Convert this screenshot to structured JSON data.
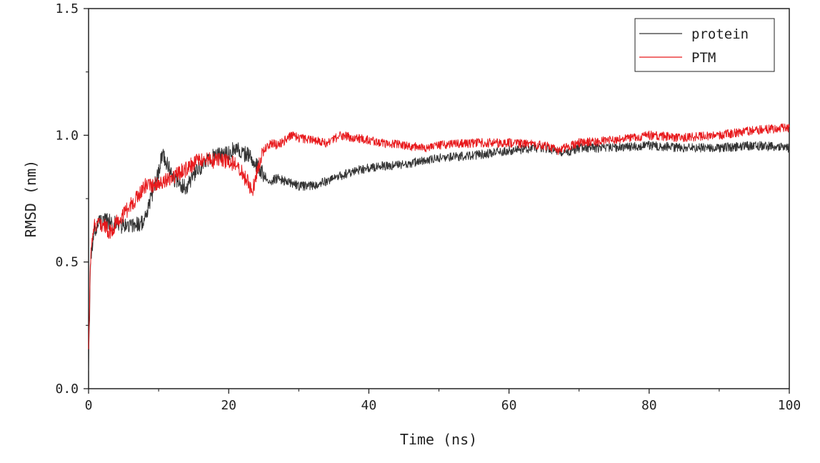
{
  "chart_data": {
    "type": "line",
    "title": "",
    "xlabel": "Time (ns)",
    "ylabel": "RMSD (nm)",
    "xlim": [
      0,
      100
    ],
    "ylim": [
      0,
      1.5
    ],
    "x_ticks": [
      0,
      20,
      40,
      60,
      80,
      100
    ],
    "x_tick_labels": [
      "0",
      "20",
      "40",
      "60",
      "80",
      "100"
    ],
    "y_ticks": [
      0,
      0.5,
      1.0,
      1.5
    ],
    "y_tick_labels": [
      "0.0",
      "0.5",
      "1.0",
      "1.5"
    ],
    "grid": false,
    "legend_position": "top-right",
    "series": [
      {
        "name": "protein",
        "color": "#333333",
        "noise": 0.018,
        "points": [
          [
            0,
            0.1
          ],
          [
            0.3,
            0.5
          ],
          [
            0.8,
            0.62
          ],
          [
            1.5,
            0.66
          ],
          [
            3,
            0.66
          ],
          [
            5,
            0.64
          ],
          [
            7,
            0.65
          ],
          [
            8,
            0.66
          ],
          [
            9,
            0.76
          ],
          [
            10,
            0.86
          ],
          [
            10.5,
            0.93
          ],
          [
            11,
            0.9
          ],
          [
            12,
            0.84
          ],
          [
            13,
            0.8
          ],
          [
            14,
            0.8
          ],
          [
            15,
            0.84
          ],
          [
            16,
            0.87
          ],
          [
            17,
            0.9
          ],
          [
            18,
            0.92
          ],
          [
            19,
            0.92
          ],
          [
            20,
            0.93
          ],
          [
            21,
            0.95
          ],
          [
            22,
            0.93
          ],
          [
            23,
            0.92
          ],
          [
            24,
            0.88
          ],
          [
            25,
            0.84
          ],
          [
            26,
            0.82
          ],
          [
            27,
            0.83
          ],
          [
            28,
            0.82
          ],
          [
            30,
            0.8
          ],
          [
            32,
            0.8
          ],
          [
            34,
            0.82
          ],
          [
            36,
            0.84
          ],
          [
            38,
            0.86
          ],
          [
            40,
            0.87
          ],
          [
            42,
            0.88
          ],
          [
            44,
            0.88
          ],
          [
            46,
            0.89
          ],
          [
            48,
            0.9
          ],
          [
            50,
            0.91
          ],
          [
            55,
            0.92
          ],
          [
            60,
            0.94
          ],
          [
            65,
            0.95
          ],
          [
            68,
            0.93
          ],
          [
            70,
            0.95
          ],
          [
            75,
            0.95
          ],
          [
            80,
            0.96
          ],
          [
            85,
            0.95
          ],
          [
            90,
            0.95
          ],
          [
            95,
            0.96
          ],
          [
            100,
            0.95
          ]
        ]
      },
      {
        "name": "PTM",
        "color": "#e8191c",
        "noise": 0.018,
        "points": [
          [
            0,
            0.18
          ],
          [
            0.3,
            0.52
          ],
          [
            0.8,
            0.64
          ],
          [
            1.5,
            0.66
          ],
          [
            3,
            0.62
          ],
          [
            5,
            0.69
          ],
          [
            7,
            0.76
          ],
          [
            8,
            0.8
          ],
          [
            9,
            0.8
          ],
          [
            10,
            0.82
          ],
          [
            11,
            0.82
          ],
          [
            12,
            0.84
          ],
          [
            13,
            0.85
          ],
          [
            14,
            0.87
          ],
          [
            15,
            0.89
          ],
          [
            16,
            0.9
          ],
          [
            18,
            0.9
          ],
          [
            20,
            0.9
          ],
          [
            21,
            0.88
          ],
          [
            22,
            0.85
          ],
          [
            23,
            0.8
          ],
          [
            23.5,
            0.79
          ],
          [
            24,
            0.85
          ],
          [
            25,
            0.94
          ],
          [
            26,
            0.97
          ],
          [
            27,
            0.96
          ],
          [
            28,
            0.98
          ],
          [
            29,
            1.0
          ],
          [
            30,
            0.99
          ],
          [
            32,
            0.98
          ],
          [
            34,
            0.97
          ],
          [
            36,
            1.0
          ],
          [
            38,
            0.99
          ],
          [
            40,
            0.98
          ],
          [
            42,
            0.97
          ],
          [
            45,
            0.96
          ],
          [
            48,
            0.95
          ],
          [
            50,
            0.96
          ],
          [
            55,
            0.97
          ],
          [
            60,
            0.97
          ],
          [
            65,
            0.96
          ],
          [
            67,
            0.94
          ],
          [
            70,
            0.97
          ],
          [
            75,
            0.98
          ],
          [
            80,
            1.0
          ],
          [
            85,
            0.99
          ],
          [
            90,
            1.0
          ],
          [
            95,
            1.02
          ],
          [
            100,
            1.03
          ]
        ]
      }
    ]
  }
}
